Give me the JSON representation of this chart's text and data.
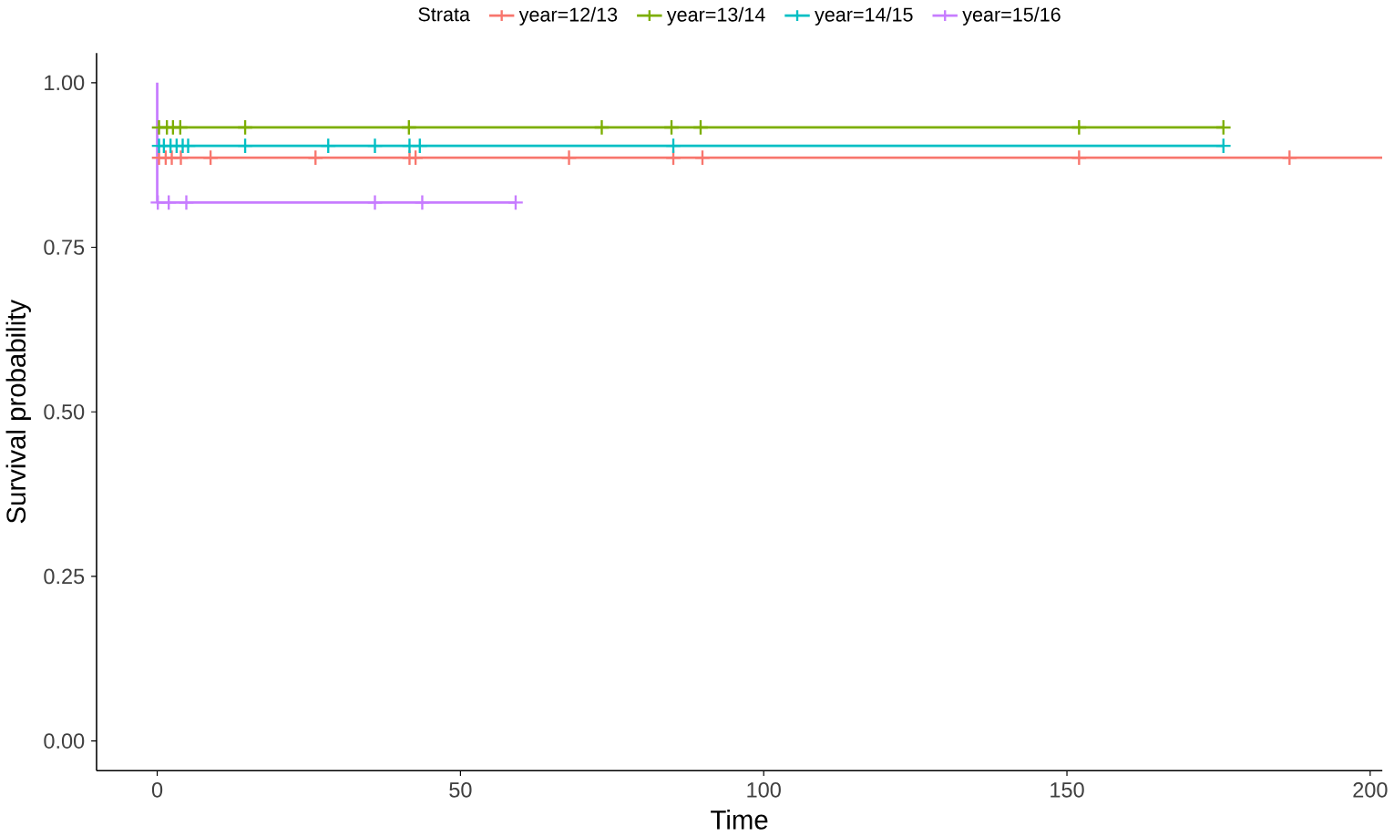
{
  "chart_data": {
    "type": "step",
    "xlabel": "Time",
    "ylabel": "Survival probability",
    "legend_title": "Strata",
    "legend": "top",
    "xlim": [
      -10,
      202
    ],
    "ylim": [
      -0.045,
      1.045
    ],
    "xticks": [
      0,
      50,
      100,
      150,
      200
    ],
    "yticks": [
      {
        "value": 0,
        "label": "0.00"
      },
      {
        "value": 0.25,
        "label": "0.25"
      },
      {
        "value": 0.5,
        "label": "0.50"
      },
      {
        "value": 0.75,
        "label": "0.75"
      },
      {
        "value": 1,
        "label": "1.00"
      }
    ],
    "grid": false,
    "series": [
      {
        "name": "year=12/13",
        "color": "#f8766d",
        "x": [
          0,
          202
        ],
        "values": [
          0.886,
          0.886
        ]
      },
      {
        "name": "year=13/14",
        "color": "#7cae00",
        "x": [
          0,
          175.8
        ],
        "values": [
          0.932,
          0.932
        ]
      },
      {
        "name": "year=14/15",
        "color": "#00bfc4",
        "x": [
          0,
          175.8
        ],
        "values": [
          0.904,
          0.904
        ]
      },
      {
        "name": "year=15/16",
        "color": "#c77cff",
        "x": [
          0,
          0,
          59.1
        ],
        "values": [
          1,
          0.818,
          0.818
        ]
      },
      {
        "color": "#f8766d",
        "type": "scatter",
        "marker": "cross",
        "x": [
          0.3,
          1.4,
          2.4,
          3.9,
          8.8,
          26.1,
          41.6,
          42.6,
          67.9,
          85.1,
          89.9,
          152,
          186.7
        ],
        "values": [
          0.886,
          0.886,
          0.886,
          0.886,
          0.886,
          0.886,
          0.886,
          0.886,
          0.886,
          0.886,
          0.886,
          0.886,
          0.886
        ]
      },
      {
        "color": "#7cae00",
        "type": "scatter",
        "marker": "cross",
        "x": [
          0.3,
          1.6,
          2.6,
          3.8,
          14.5,
          41.5,
          73.3,
          84.8,
          89.6,
          152,
          175.8
        ],
        "values": [
          0.932,
          0.932,
          0.932,
          0.932,
          0.932,
          0.932,
          0.932,
          0.932,
          0.932,
          0.932,
          0.932
        ]
      },
      {
        "color": "#00bfc4",
        "type": "scatter",
        "marker": "cross",
        "x": [
          0.3,
          1.1,
          2.2,
          3.2,
          4.2,
          5.1,
          14.5,
          28.2,
          35.9,
          41.6,
          43.3,
          85.1,
          175.8
        ],
        "values": [
          0.904,
          0.904,
          0.904,
          0.904,
          0.904,
          0.904,
          0.904,
          0.904,
          0.904,
          0.904,
          0.904,
          0.904,
          0.904
        ]
      },
      {
        "color": "#c77cff",
        "type": "scatter",
        "marker": "cross",
        "x": [
          0.1,
          1.9,
          4.8,
          35.9,
          43.7,
          59.1
        ],
        "values": [
          0.818,
          0.818,
          0.818,
          0.818,
          0.818,
          0.818
        ]
      }
    ]
  }
}
